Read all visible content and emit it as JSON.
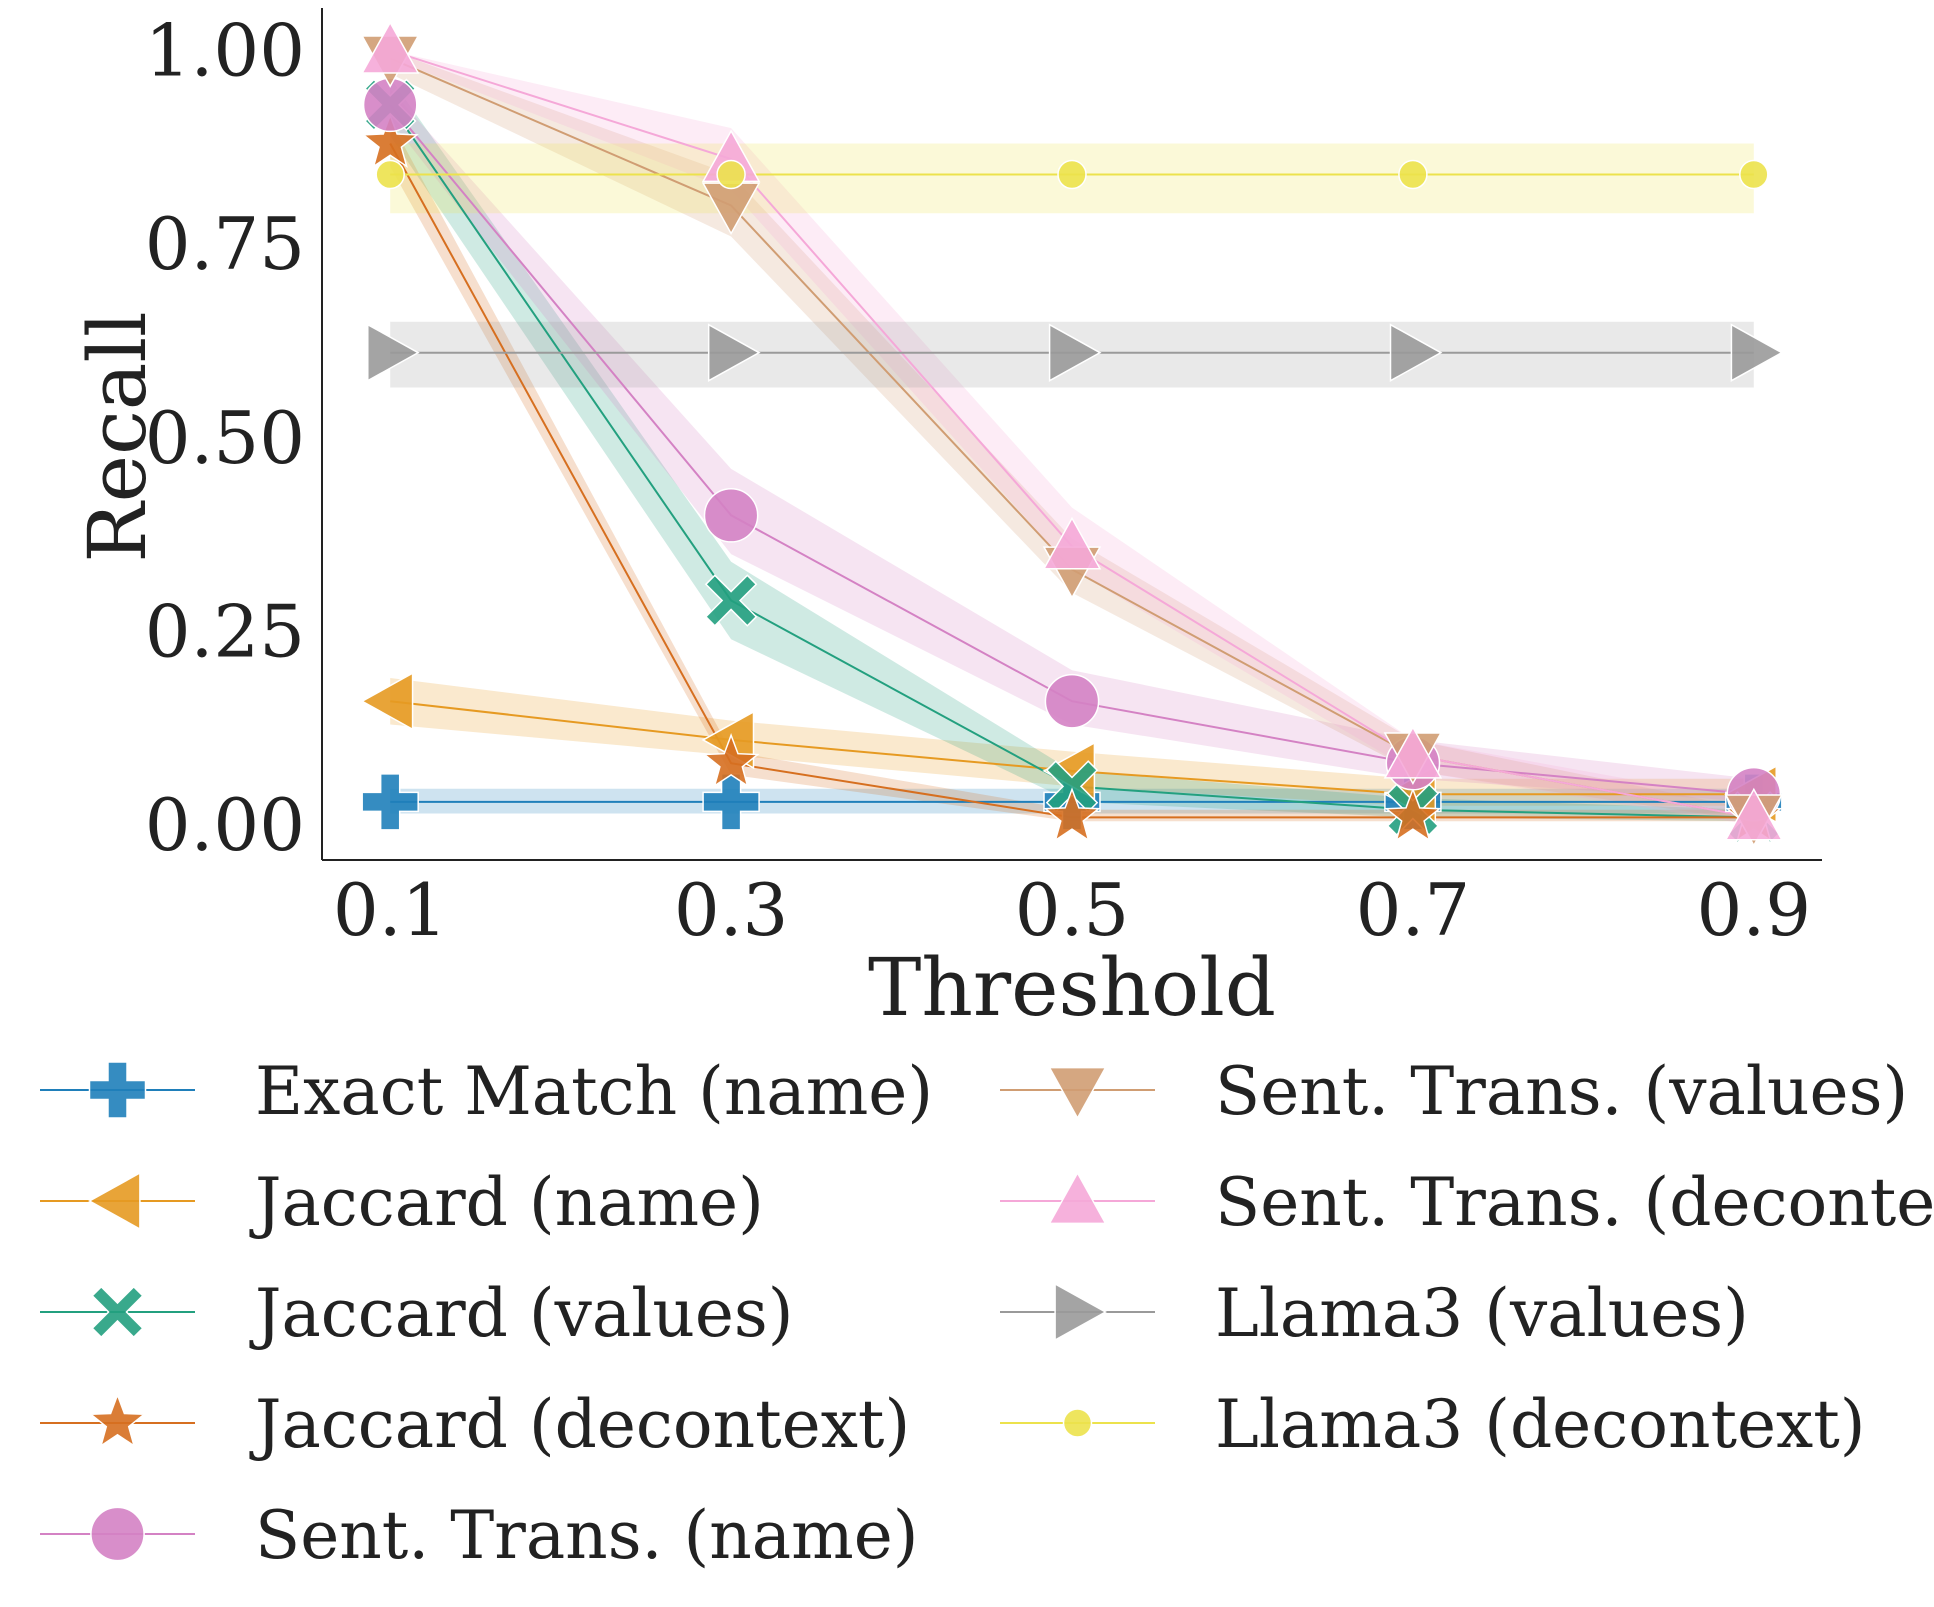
{
  "chart_data": {
    "type": "line",
    "xlabel": "Threshold",
    "ylabel": "Recall",
    "x": [
      0.1,
      0.3,
      0.5,
      0.7,
      0.9
    ],
    "x_tick_labels": [
      "0.1",
      "0.3",
      "0.5",
      "0.7",
      "0.9"
    ],
    "y_ticks": [
      0.0,
      0.25,
      0.5,
      0.75,
      1.0
    ],
    "y_tick_labels": [
      "0.00",
      "0.25",
      "0.50",
      "0.75",
      "1.00"
    ],
    "xlim": [
      0.06,
      0.94
    ],
    "ylim": [
      -0.045,
      1.055
    ],
    "grid": false,
    "legend_position": "below, two columns",
    "series": [
      {
        "name": "Exact Match (name)",
        "marker": "plus",
        "color": "#1f7fba",
        "values": [
          0.03,
          0.03,
          0.03,
          0.03,
          0.03
        ],
        "lower": [
          0.015,
          0.015,
          0.015,
          0.015,
          0.015
        ],
        "upper": [
          0.047,
          0.047,
          0.047,
          0.047,
          0.047
        ]
      },
      {
        "name": "Jaccard (name)",
        "marker": "triangle-left",
        "color": "#e69a22",
        "values": [
          0.16,
          0.11,
          0.07,
          0.04,
          0.04
        ],
        "lower": [
          0.13,
          0.09,
          0.05,
          0.025,
          0.025
        ],
        "upper": [
          0.19,
          0.135,
          0.095,
          0.06,
          0.06
        ]
      },
      {
        "name": "Jaccard (values)",
        "marker": "x",
        "color": "#23a07f",
        "values": [
          0.93,
          0.29,
          0.05,
          0.02,
          0.01
        ],
        "lower": [
          0.89,
          0.24,
          0.03,
          0.01,
          0.005
        ],
        "upper": [
          0.965,
          0.34,
          0.07,
          0.035,
          0.02
        ]
      },
      {
        "name": "Jaccard (decontext)",
        "marker": "star",
        "color": "#d66f20",
        "values": [
          0.88,
          0.08,
          0.01,
          0.01,
          0.01
        ],
        "lower": [
          0.85,
          0.065,
          0.005,
          0.005,
          0.005
        ],
        "upper": [
          0.91,
          0.095,
          0.02,
          0.02,
          0.02
        ]
      },
      {
        "name": "Sent. Trans. (name)",
        "marker": "circle",
        "color": "#d482c4",
        "values": [
          0.93,
          0.4,
          0.16,
          0.08,
          0.04
        ],
        "lower": [
          0.91,
          0.35,
          0.13,
          0.06,
          0.03
        ],
        "upper": [
          0.95,
          0.46,
          0.2,
          0.11,
          0.06
        ]
      },
      {
        "name": "Sent. Trans. (values)",
        "marker": "triangle-down",
        "color": "#d09d73",
        "values": [
          0.99,
          0.8,
          0.33,
          0.09,
          0.01
        ],
        "lower": [
          0.97,
          0.76,
          0.3,
          0.07,
          0.005
        ],
        "upper": [
          1.0,
          0.84,
          0.37,
          0.11,
          0.02
        ]
      },
      {
        "name": "Sent. Trans. (decontext)",
        "marker": "triangle-up",
        "color": "#f5a8d8",
        "values": [
          1.0,
          0.86,
          0.36,
          0.09,
          0.01
        ],
        "lower": [
          0.99,
          0.82,
          0.33,
          0.07,
          0.0
        ],
        "upper": [
          1.0,
          0.9,
          0.41,
          0.11,
          0.03
        ]
      },
      {
        "name": "Llama3 (values)",
        "marker": "triangle-right",
        "color": "#9a9a9a",
        "values": [
          0.61,
          0.61,
          0.61,
          0.61,
          0.61
        ],
        "lower": [
          0.565,
          0.565,
          0.565,
          0.565,
          0.565
        ],
        "upper": [
          0.65,
          0.65,
          0.65,
          0.65,
          0.65
        ]
      },
      {
        "name": "Llama3 (decontext)",
        "marker": "dot",
        "color": "#ece24c",
        "values": [
          0.84,
          0.84,
          0.84,
          0.84,
          0.84
        ],
        "lower": [
          0.79,
          0.79,
          0.79,
          0.79,
          0.79
        ],
        "upper": [
          0.88,
          0.88,
          0.88,
          0.88,
          0.88
        ]
      }
    ]
  }
}
